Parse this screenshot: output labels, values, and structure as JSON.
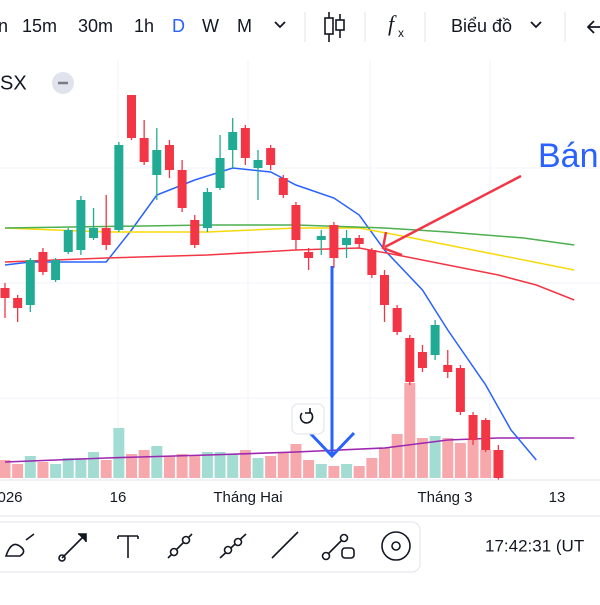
{
  "toolbar": {
    "intervals": [
      "n",
      "15m",
      "30m",
      "1h",
      "D",
      "W",
      "M"
    ],
    "active_interval_index": 4,
    "chart_type_menu": "Biểu đồ",
    "indicator_icon": "f",
    "indicator_sub": "x"
  },
  "symbol": "SX",
  "annotation": "Bán",
  "status_time": "17:42:31 (UT",
  "chart_data": {
    "type": "candlestick",
    "x_labels": [
      "026",
      "16",
      "Tháng Hai",
      "Tháng 3",
      "13"
    ],
    "ylim": [
      0,
      420
    ],
    "up_color": "#22ab94",
    "down_color": "#f23645",
    "volume_up_color": "#a3dcd2",
    "volume_down_color": "#f7a8ac",
    "open": [
      192,
      182,
      175,
      228,
      200,
      228,
      230,
      242,
      252,
      250,
      385,
      342,
      305,
      335,
      310,
      260,
      252,
      292,
      330,
      352,
      312,
      332,
      302,
      275,
      228,
      240,
      255,
      235,
      242,
      230,
      205,
      172,
      142,
      128,
      125,
      115,
      112,
      65,
      60,
      30
    ],
    "high": [
      197,
      185,
      222,
      232,
      222,
      252,
      284,
      272,
      285,
      338,
      385,
      360,
      352,
      340,
      320,
      265,
      292,
      345,
      362,
      355,
      330,
      335,
      305,
      278,
      232,
      250,
      258,
      250,
      245,
      232,
      210,
      175,
      145,
      135,
      160,
      130,
      115,
      68,
      62,
      35
    ],
    "low": [
      162,
      158,
      168,
      205,
      198,
      226,
      225,
      240,
      230,
      248,
      340,
      315,
      280,
      302,
      268,
      232,
      248,
      290,
      312,
      315,
      280,
      310,
      282,
      230,
      210,
      225,
      212,
      222,
      232,
      202,
      158,
      145,
      95,
      108,
      120,
      102,
      65,
      35,
      28,
      0
    ],
    "close": [
      182,
      172,
      220,
      208,
      220,
      250,
      280,
      252,
      235,
      335,
      342,
      318,
      330,
      310,
      272,
      235,
      288,
      322,
      348,
      322,
      320,
      315,
      285,
      240,
      222,
      244,
      222,
      242,
      236,
      205,
      175,
      148,
      98,
      112,
      155,
      108,
      68,
      40,
      30,
      2
    ],
    "volume": [
      18,
      14,
      22,
      16,
      14,
      20,
      20,
      26,
      18,
      50,
      24,
      28,
      32,
      22,
      24,
      22,
      26,
      26,
      24,
      28,
      20,
      22,
      26,
      34,
      18,
      14,
      12,
      14,
      12,
      20,
      30,
      44,
      95,
      40,
      42,
      40,
      35,
      38,
      28,
      28
    ],
    "volume_ylim": [
      0,
      420
    ],
    "moving_averages": [
      {
        "color": "#2962ff",
        "x": [
          0,
          2,
          8,
          10,
          12,
          15,
          18,
          21,
          23,
          26,
          28,
          30,
          33,
          35,
          38,
          40,
          42
        ],
        "values": [
          215,
          218,
          218,
          250,
          285,
          300,
          312,
          308,
          295,
          282,
          265,
          230,
          190,
          150,
          95,
          50,
          20
        ]
      },
      {
        "color": "#f23645",
        "x": [
          0,
          8,
          16,
          23,
          28,
          31,
          35,
          39,
          42,
          45
        ],
        "values": [
          218,
          222,
          225,
          230,
          232,
          225,
          215,
          205,
          195,
          180
        ]
      },
      {
        "color": "#f5d90a",
        "x": [
          0,
          8,
          16,
          23,
          28,
          31,
          35,
          39,
          45
        ],
        "values": [
          252,
          248,
          248,
          252,
          252,
          245,
          235,
          225,
          210
        ]
      },
      {
        "color": "#4caf50",
        "x": [
          0,
          16,
          23,
          30,
          35,
          41,
          45
        ],
        "values": [
          252,
          255,
          255,
          252,
          248,
          242,
          235
        ]
      }
    ],
    "volume_average": {
      "color": "#9c27b0",
      "x": [
        0,
        8,
        16,
        23,
        30,
        35,
        39,
        45
      ],
      "values": [
        16,
        20,
        23,
        26,
        30,
        38,
        40,
        40
      ]
    }
  }
}
